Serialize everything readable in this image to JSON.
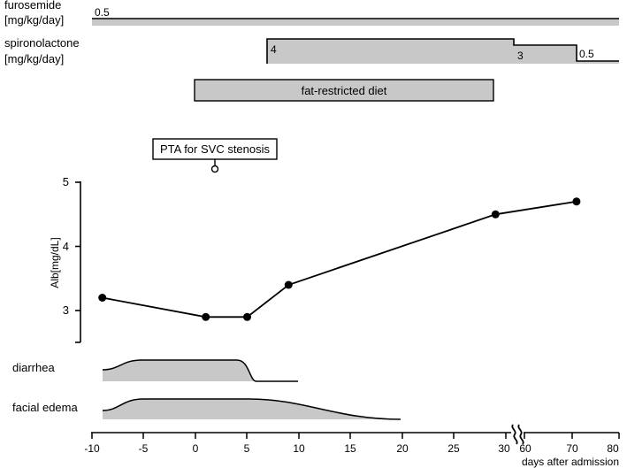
{
  "chart_data": {
    "type": "line",
    "title": "",
    "xlabel": "days after admission",
    "ylabel": "Alb[mg/dL]",
    "x_ticks": [
      "-10",
      "-5",
      "0",
      "5",
      "10",
      "15",
      "20",
      "25",
      "30",
      "60",
      "70",
      "80"
    ],
    "y_ticks": [
      "3",
      "4",
      "5"
    ],
    "ylim": [
      2.5,
      5.0
    ],
    "series": [
      {
        "name": "Alb",
        "x": [
          -9,
          1,
          5,
          9,
          29,
          71
        ],
        "y": [
          3.2,
          2.9,
          2.9,
          3.4,
          4.5,
          4.7
        ]
      }
    ],
    "dose_tracks": [
      {
        "name": "furosemide",
        "label_line1": "furosemide",
        "label_line2": "[mg/kg/day]",
        "segments": [
          {
            "start": -10,
            "end": 80,
            "dose": "0.5"
          }
        ]
      },
      {
        "name": "spironolactone",
        "label_line1": "spironolactone",
        "label_line2": "[mg/kg/day]",
        "segments": [
          {
            "start": 7,
            "end": 60,
            "dose": "4"
          },
          {
            "start": 60,
            "end": 71,
            "dose": "3"
          },
          {
            "start": 71,
            "end": 80,
            "dose": "0.5"
          }
        ]
      }
    ],
    "interventions": [
      {
        "label": "fat-restricted diet",
        "start": 0,
        "end": 29
      }
    ],
    "events": [
      {
        "label": "PTA for SVC stenosis",
        "day": 2
      }
    ],
    "symptom_tracks": [
      {
        "name": "diarrhea",
        "onset": -9,
        "plateau_start": -5,
        "plateau_end": 4,
        "resolved": 6,
        "end": 10
      },
      {
        "name": "facial edema",
        "onset": -9,
        "plateau_start": -5,
        "plateau_end": 5,
        "resolved": 20,
        "end": 20
      }
    ],
    "axis_break": "between 30 and 60"
  }
}
